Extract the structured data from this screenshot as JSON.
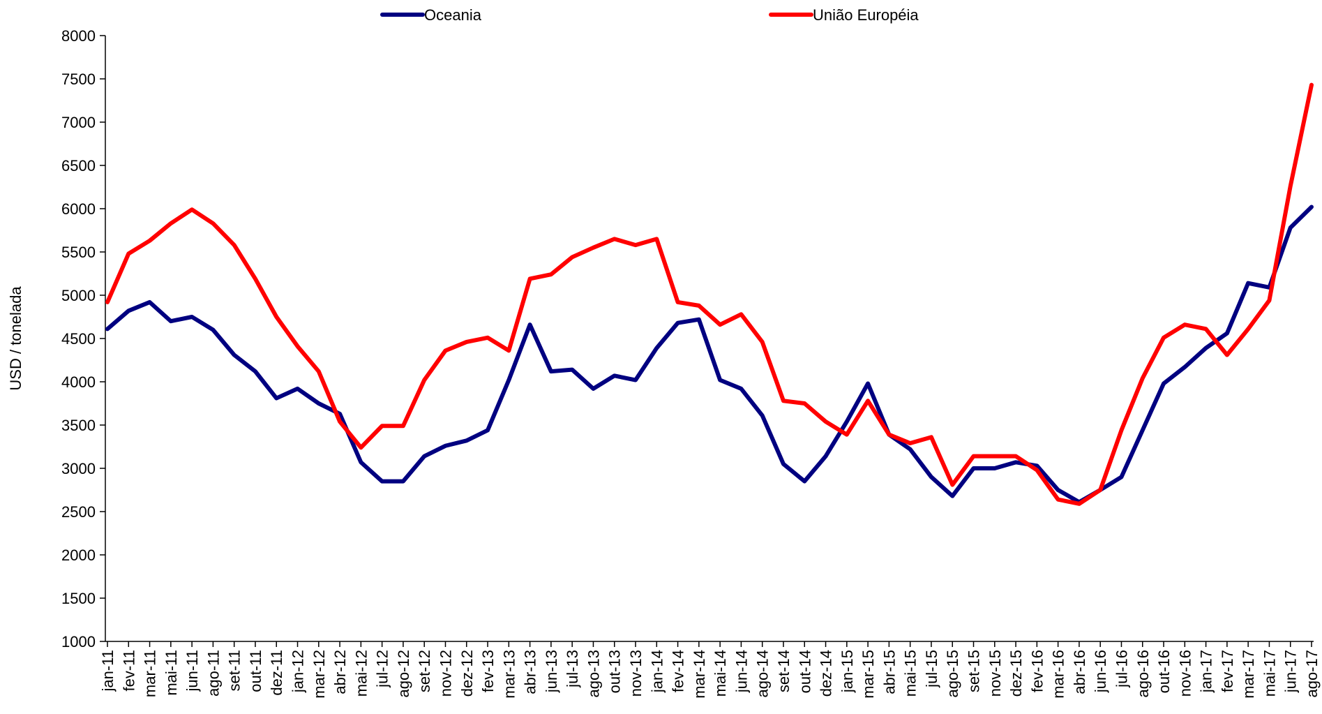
{
  "chart_data": {
    "type": "line",
    "y_label": "USD / tonelada",
    "categories": [
      "jan-11",
      "fev-11",
      "mar-11",
      "mai-11",
      "jun-11",
      "ago-11",
      "set-11",
      "out-11",
      "dez-11",
      "jan-12",
      "mar-12",
      "abr-12",
      "mai-12",
      "jul-12",
      "ago-12",
      "set-12",
      "nov-12",
      "dez-12",
      "fev-13",
      "mar-13",
      "abr-13",
      "jun-13",
      "jul-13",
      "ago-13",
      "out-13",
      "nov-13",
      "jan-14",
      "fev-14",
      "mar-14",
      "mai-14",
      "jun-14",
      "ago-14",
      "set-14",
      "out-14",
      "dez-14",
      "jan-15",
      "mar-15",
      "abr-15",
      "mai-15",
      "jul-15",
      "ago-15",
      "set-15",
      "nov-15",
      "dez-15",
      "fev-16",
      "mar-16",
      "abr-16",
      "jun-16",
      "jul-16",
      "ago-16",
      "out-16",
      "nov-16",
      "jan-17",
      "fev-17",
      "mar-17",
      "mai-17",
      "jun-17",
      "ago-17"
    ],
    "series": [
      {
        "name": "Oceania",
        "color": "#000080",
        "values": [
          4610,
          4820,
          4920,
          4700,
          4750,
          4600,
          4310,
          4120,
          3810,
          3920,
          3750,
          3630,
          3070,
          2850,
          2850,
          3140,
          3260,
          3320,
          3440,
          4020,
          4660,
          4120,
          4140,
          3920,
          4070,
          4020,
          4390,
          4680,
          4720,
          4020,
          3920,
          3610,
          3050,
          2850,
          3140,
          3540,
          3980,
          3390,
          3220,
          2900,
          2680,
          3000,
          3000,
          3070,
          3030,
          2750,
          2610,
          2750,
          2900,
          3440,
          3980,
          4170,
          4390,
          4560,
          5140,
          5090,
          5780,
          6020
        ]
      },
      {
        "name": "União Européia",
        "color": "#ff0000",
        "values": [
          4920,
          5480,
          5630,
          5830,
          5990,
          5830,
          5580,
          5190,
          4750,
          4410,
          4120,
          3540,
          3240,
          3490,
          3490,
          4020,
          4360,
          4460,
          4510,
          4360,
          5190,
          5240,
          5440,
          5550,
          5650,
          5580,
          5650,
          4920,
          4880,
          4660,
          4780,
          4460,
          3780,
          3750,
          3540,
          3390,
          3780,
          3390,
          3290,
          3360,
          2810,
          3140,
          3140,
          3140,
          2980,
          2640,
          2590,
          2750,
          3440,
          4040,
          4510,
          4660,
          4610,
          4310,
          4610,
          4940,
          6260,
          7430
        ]
      }
    ],
    "ylim": [
      1000,
      8000
    ],
    "yticks": [
      1000,
      1500,
      2000,
      2500,
      3000,
      3500,
      4000,
      4500,
      5000,
      5500,
      6000,
      6500,
      7000,
      7500,
      8000
    ],
    "grid": false,
    "legend": "top"
  }
}
